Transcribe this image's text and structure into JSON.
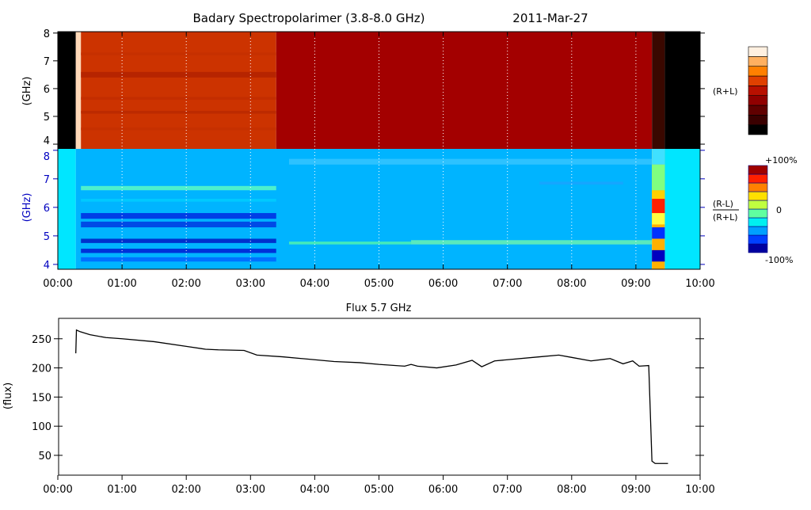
{
  "chart_data": [
    {
      "type": "heatmap",
      "title": "Badary Spectropolarimer (3.8-8.0 GHz)",
      "date": "2011-Mar-27",
      "ylabel": "(GHz)",
      "ylim": [
        3.83,
        8.05
      ],
      "xlim": [
        0,
        10
      ],
      "yticks": [
        "4",
        "5",
        "6",
        "7",
        "8"
      ],
      "xticks": [
        "00:00",
        "01:00",
        "02:00",
        "03:00",
        "04:00",
        "05:00",
        "06:00",
        "07:00",
        "08:00",
        "09:00",
        "10:00"
      ],
      "colorbar_label": "(R+L)",
      "colorbar_colors": [
        "#000000",
        "#3a0000",
        "#600000",
        "#900000",
        "#b81000",
        "#e04000",
        "#ff8000",
        "#ffb060",
        "#fff0e0"
      ],
      "segments": [
        {
          "from": 0,
          "to": 0.28,
          "color": "#000000"
        },
        {
          "from": 0.28,
          "to": 0.36,
          "color": "#ffd9b8"
        },
        {
          "from": 0.36,
          "to": 3.4,
          "color": "#cc3300"
        },
        {
          "from": 3.4,
          "to": 9.25,
          "color": "#a30000"
        },
        {
          "from": 9.25,
          "to": 9.45,
          "color": "#3a0800"
        },
        {
          "from": 9.45,
          "to": 10,
          "color": "#000000"
        }
      ]
    },
    {
      "type": "heatmap",
      "title": "",
      "ylabel": "(GHz)",
      "ylim": [
        3.83,
        8.05
      ],
      "xlim": [
        0,
        10
      ],
      "yticks": [
        "4",
        "5",
        "6",
        "7",
        "8"
      ],
      "colorbar_label_num": "(R-L)",
      "colorbar_label_den": "(R+L)",
      "colorbar_ticks": [
        "+100%",
        "0",
        "-100%"
      ],
      "colorbar_colors": [
        "#0000a0",
        "#0040ff",
        "#00a0ff",
        "#00f0f0",
        "#60ffa0",
        "#c0ff40",
        "#ffe000",
        "#ff8000",
        "#ff2000",
        "#a00000"
      ],
      "segments": [
        {
          "from": 0,
          "to": 0.28,
          "color": "#00e6ff"
        },
        {
          "from": 0.28,
          "to": 9.25,
          "color": "#00b4ff"
        },
        {
          "from": 9.25,
          "to": 9.45,
          "color": "#ffb000"
        },
        {
          "from": 9.45,
          "to": 10,
          "color": "#00e6ff"
        }
      ]
    },
    {
      "type": "line",
      "title": "Flux 5.7 GHz",
      "ylabel": "(flux)",
      "ylim": [
        16,
        285
      ],
      "xlim": [
        0,
        10
      ],
      "yticks": [
        50,
        100,
        150,
        200,
        250
      ],
      "xticks": [
        "00:00",
        "01:00",
        "02:00",
        "03:00",
        "04:00",
        "05:00",
        "06:00",
        "07:00",
        "08:00",
        "09:00",
        "10:00"
      ],
      "x": [
        0.28,
        0.29,
        0.35,
        0.5,
        0.75,
        1.0,
        1.5,
        2.0,
        2.3,
        2.5,
        2.9,
        3.1,
        3.5,
        4.0,
        4.3,
        4.7,
        5.0,
        5.4,
        5.5,
        5.6,
        5.9,
        6.2,
        6.45,
        6.6,
        6.8,
        7.0,
        7.5,
        7.8,
        8.0,
        8.3,
        8.6,
        8.8,
        8.95,
        9.05,
        9.2,
        9.25,
        9.3,
        9.5
      ],
      "y": [
        225,
        265,
        262,
        257,
        252,
        250,
        245,
        237,
        232,
        231,
        230,
        222,
        219,
        214,
        211,
        209,
        206,
        203,
        206,
        203,
        200,
        205,
        213,
        202,
        212,
        214,
        219,
        222,
        218,
        212,
        216,
        207,
        212,
        203,
        204,
        40,
        36,
        36
      ]
    }
  ]
}
